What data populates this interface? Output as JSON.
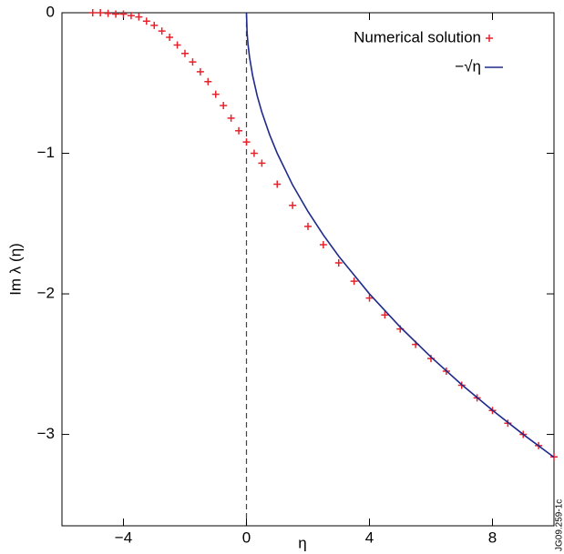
{
  "chart_data": {
    "type": "scatter-line",
    "x_label": "η",
    "y_label": "Im λ (η)",
    "watermark": "JG09.259-1c",
    "xlim": [
      -6,
      10
    ],
    "ylim": [
      -3.65,
      0
    ],
    "xticks": [
      {
        "value": -4,
        "label": "−4"
      },
      0,
      4,
      8
    ],
    "yticks": [
      0,
      {
        "value": -1,
        "label": "−1"
      },
      {
        "value": -2,
        "label": "−2"
      },
      {
        "value": -3,
        "label": "−3"
      }
    ],
    "series": [
      {
        "name": "Numerical solution",
        "kind": "marker",
        "color": "#e8222a",
        "x": [
          -5,
          -4.75,
          -4.5,
          -4.25,
          -4,
          -3.75,
          -3.5,
          -3.25,
          -3,
          -2.75,
          -2.5,
          -2.25,
          -2,
          -1.75,
          -1.5,
          -1.25,
          -1,
          -0.75,
          -0.5,
          -0.25,
          0,
          0.25,
          0.5,
          1,
          1.5,
          2,
          2.5,
          3,
          3.5,
          4,
          4.5,
          5,
          5.5,
          6,
          6.5,
          7,
          7.5,
          8,
          8.5,
          9,
          9.5,
          10
        ],
        "values": [
          0,
          0,
          -0.005,
          -0.01,
          -0.01,
          -0.02,
          -0.03,
          -0.06,
          -0.09,
          -0.13,
          -0.175,
          -0.23,
          -0.29,
          -0.35,
          -0.42,
          -0.49,
          -0.58,
          -0.66,
          -0.75,
          -0.84,
          -0.92,
          -1.0,
          -1.07,
          -1.22,
          -1.37,
          -1.52,
          -1.65,
          -1.78,
          -1.91,
          -2.03,
          -2.15,
          -2.25,
          -2.36,
          -2.46,
          -2.55,
          -2.65,
          -2.74,
          -2.83,
          -2.92,
          -3.0,
          -3.08,
          -3.16
        ]
      },
      {
        "name": "−√η",
        "kind": "line",
        "color": "#1f2a8a",
        "x": [
          0,
          0.02,
          0.05,
          0.1,
          0.2,
          0.35,
          0.5,
          0.75,
          1,
          1.5,
          2,
          2.5,
          3,
          4,
          5,
          6,
          7,
          8,
          9,
          10
        ],
        "values": [
          0,
          -0.141,
          -0.224,
          -0.316,
          -0.447,
          -0.592,
          -0.707,
          -0.866,
          -1,
          -1.225,
          -1.414,
          -1.581,
          -1.732,
          -2,
          -2.236,
          -2.449,
          -2.646,
          -2.828,
          -3,
          -3.162
        ]
      }
    ]
  }
}
